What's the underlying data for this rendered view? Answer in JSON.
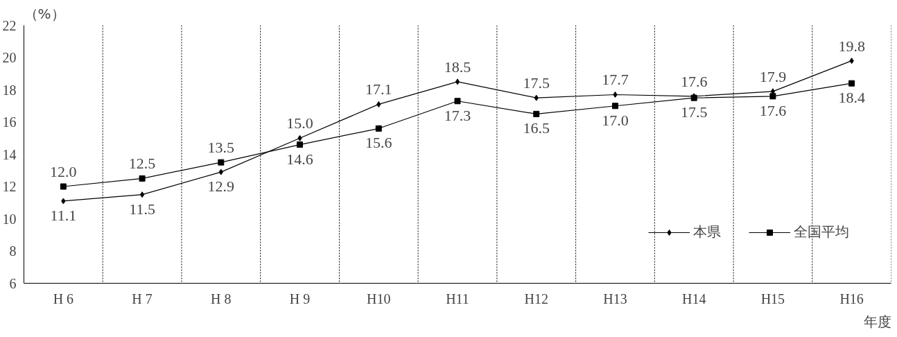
{
  "chart_data": {
    "type": "line",
    "ylabel": "（%）",
    "xlabel": "年度",
    "categories": [
      "H 6",
      "H 7",
      "H 8",
      "H 9",
      "H10",
      "H11",
      "H12",
      "H13",
      "H14",
      "H15",
      "H16"
    ],
    "series": [
      {
        "name": "本県",
        "color": "#000000",
        "marker": "diamond",
        "values": [
          11.1,
          11.5,
          12.9,
          15.0,
          17.1,
          18.5,
          17.5,
          17.7,
          17.6,
          17.9,
          19.8
        ],
        "value_labels": [
          "11.1",
          "11.5",
          "12.9",
          "15.0",
          "17.1",
          "18.5",
          "17.5",
          "17.7",
          "17.6",
          "17.9",
          "19.8"
        ]
      },
      {
        "name": "全国平均",
        "color": "#000000",
        "marker": "square",
        "values": [
          12.0,
          12.5,
          13.5,
          14.6,
          15.6,
          17.3,
          16.5,
          17.0,
          17.5,
          17.6,
          18.4
        ],
        "value_labels": [
          "12.0",
          "12.5",
          "13.5",
          "14.6",
          "15.6",
          "17.3",
          "16.5",
          "17.0",
          "17.5",
          "17.6",
          "18.4"
        ]
      }
    ],
    "ylim": [
      6,
      22
    ],
    "yticks": [
      6,
      8,
      10,
      12,
      14,
      16,
      18,
      20,
      22
    ],
    "grid": "x",
    "legend": "bottom right",
    "line_style": "solid"
  }
}
